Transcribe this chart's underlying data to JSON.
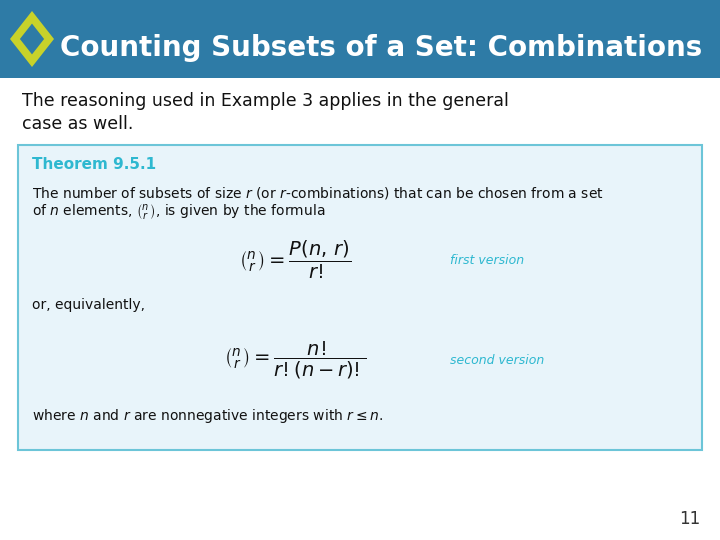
{
  "title": "Counting Subsets of a Set: Combinations",
  "title_bg_color": "#2E7BA6",
  "title_text_color": "#FFFFFF",
  "body_bg_color": "#FFFFFF",
  "intro_text_line1": "The reasoning used in Example 3 applies in the general",
  "intro_text_line2": "case as well.",
  "theorem_box_bg": "#E8F4FA",
  "theorem_box_border": "#6CC5D8",
  "theorem_title": "Theorem 9.5.1",
  "theorem_title_color": "#2EB8D0",
  "theorem_body_line1": "The number of subsets of size $r$ (or $r$-combinations) that can be chosen from a set",
  "theorem_body_line2": "of $n$ elements, $\\binom{n}{r}$, is given by the formula",
  "formula1": "$\\binom{n}{r} = \\dfrac{P(n,\\,r)}{r!}$",
  "label1": "first version",
  "equiv_text": "or, equivalently,",
  "formula2": "$\\binom{n}{r} = \\dfrac{n!}{r!(n-r)!}$",
  "label2": "second version",
  "footer_text": "where $n$ and $r$ are nonnegative integers with $r \\leq n$.",
  "label_color": "#2EB8D0",
  "page_number": "11",
  "diamond_yellow": "#C8D22A",
  "diamond_blue": "#2E7BA6",
  "text_color": "#111111"
}
